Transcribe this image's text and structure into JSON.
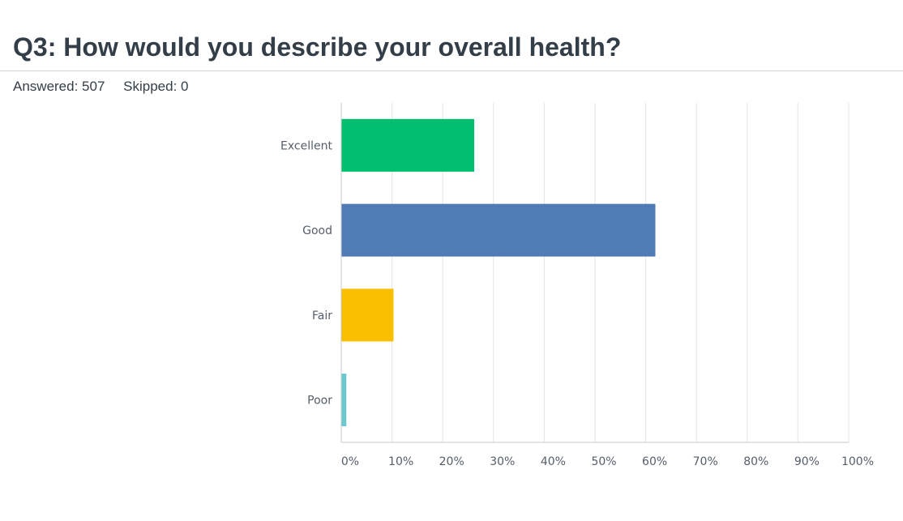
{
  "question": {
    "title": "Q3: How would you describe your overall health?",
    "answered_label": "Answered: 507",
    "skipped_label": "Skipped: 0"
  },
  "chart_data": {
    "type": "bar",
    "orientation": "horizontal",
    "categories": [
      "Excellent",
      "Good",
      "Fair",
      "Poor"
    ],
    "values": [
      26.2,
      61.9,
      10.3,
      1.0
    ],
    "colors": [
      "#00bf6f",
      "#507cb6",
      "#f9be00",
      "#6bc8cd"
    ],
    "xlim": [
      0,
      100
    ],
    "xticks": [
      "0%",
      "10%",
      "20%",
      "30%",
      "40%",
      "50%",
      "60%",
      "70%",
      "80%",
      "90%",
      "100%"
    ],
    "grid": true,
    "legend": "none"
  }
}
